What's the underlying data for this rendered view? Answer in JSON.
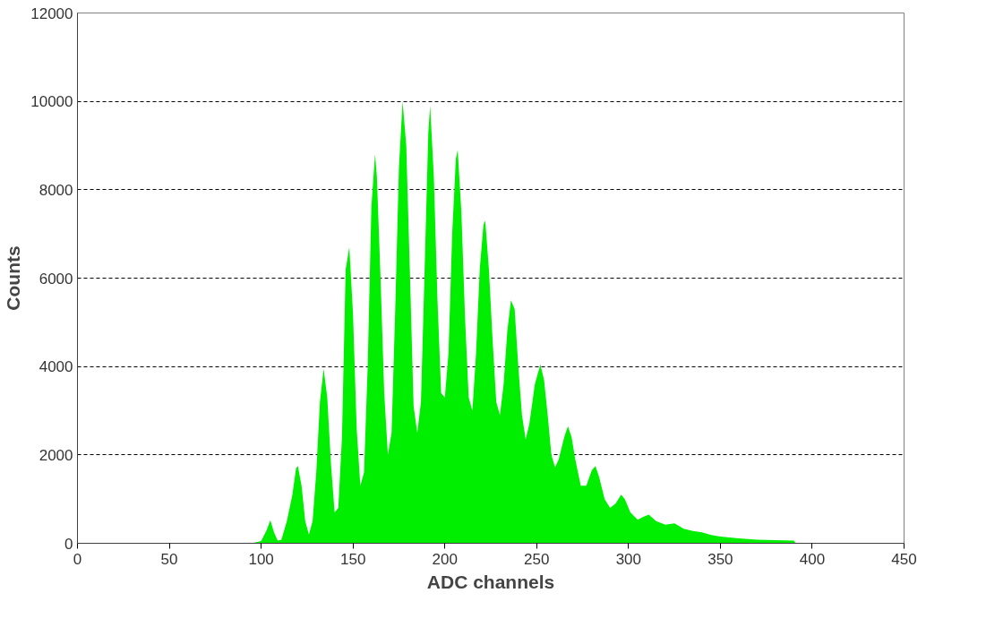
{
  "chart_data": {
    "type": "area",
    "xlabel": "ADC channels",
    "ylabel": "Counts",
    "xlim": [
      0,
      450
    ],
    "ylim": [
      0,
      12000
    ],
    "xticks": [
      0,
      50,
      100,
      150,
      200,
      250,
      300,
      350,
      400,
      450
    ],
    "yticks": [
      0,
      2000,
      4000,
      6000,
      8000,
      10000,
      12000
    ],
    "grid": "y",
    "series": [
      {
        "color": "#00ee00",
        "x": [
          95,
          100,
          103,
          105,
          107,
          109,
          111,
          114,
          117,
          119,
          120,
          122,
          124,
          126,
          128,
          130,
          132,
          134,
          136,
          138,
          140,
          142,
          144,
          146,
          148,
          150,
          152,
          154,
          156,
          158,
          160,
          162,
          163,
          165,
          167,
          169,
          171,
          173,
          175,
          177,
          179,
          181,
          183,
          185,
          187,
          189,
          191,
          192,
          194,
          196,
          198,
          200,
          202,
          204,
          206,
          207,
          209,
          211,
          213,
          215,
          217,
          219,
          221,
          222,
          224,
          226,
          228,
          230,
          232,
          234,
          236,
          238,
          240,
          242,
          244,
          246,
          249,
          252,
          254,
          256,
          258,
          260,
          262,
          265,
          267,
          269,
          271,
          274,
          277,
          280,
          282,
          284,
          287,
          290,
          293,
          296,
          298,
          301,
          305,
          308,
          311,
          315,
          320,
          325,
          330,
          335,
          340,
          345,
          350,
          355,
          360,
          370,
          380,
          390,
          391
        ],
        "values": [
          0,
          50,
          300,
          520,
          250,
          60,
          80,
          500,
          1100,
          1700,
          1750,
          1300,
          500,
          200,
          500,
          1600,
          3200,
          3950,
          3300,
          1800,
          700,
          800,
          2400,
          6200,
          6700,
          5200,
          2600,
          1300,
          1600,
          4000,
          7600,
          8800,
          8300,
          6000,
          3400,
          2000,
          2500,
          5300,
          8500,
          10000,
          9000,
          6100,
          3100,
          2500,
          3200,
          6200,
          9300,
          9900,
          8300,
          5500,
          3400,
          3300,
          4300,
          7000,
          8700,
          8900,
          7500,
          5100,
          3300,
          3000,
          4300,
          6200,
          7200,
          7300,
          6200,
          4600,
          3200,
          2900,
          3600,
          4800,
          5500,
          5300,
          4000,
          2900,
          2350,
          2700,
          3600,
          4050,
          3700,
          2900,
          2000,
          1720,
          1900,
          2400,
          2650,
          2400,
          1900,
          1300,
          1300,
          1650,
          1750,
          1500,
          1000,
          800,
          900,
          1100,
          1000,
          700,
          530,
          600,
          650,
          500,
          420,
          450,
          330,
          280,
          250,
          190,
          150,
          130,
          110,
          80,
          70,
          60,
          0
        ]
      }
    ]
  }
}
